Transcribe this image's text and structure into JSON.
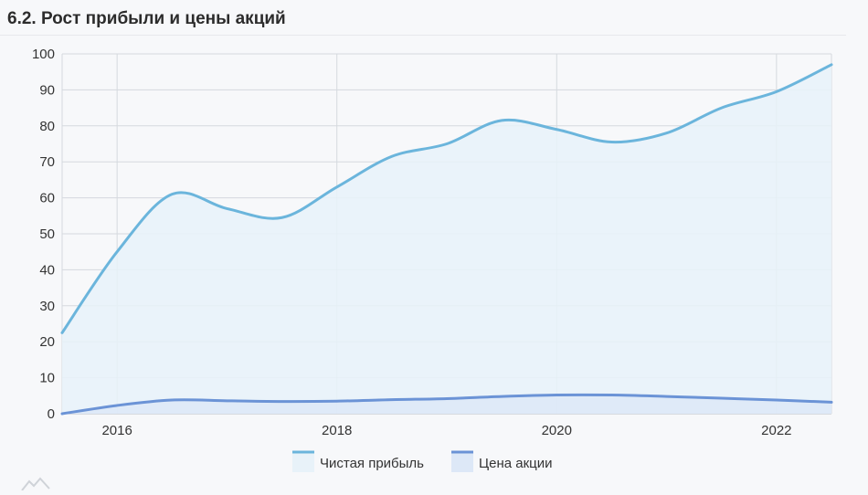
{
  "section": {
    "title": "6.2. Рост прибыли и цены акций"
  },
  "colors": {
    "profit_line": "#6bb5dc",
    "profit_fill": "#e8f2f9",
    "price_line": "#6b93d6",
    "price_fill": "#dde8f7",
    "grid": "#d5d9de",
    "axis": "#333333"
  },
  "chart_data": {
    "type": "area",
    "title": "",
    "xlabel": "",
    "ylabel": "",
    "xlim": [
      2015.5,
      2022.5
    ],
    "ylim": [
      0,
      100
    ],
    "yticks": [
      0,
      10,
      20,
      30,
      40,
      50,
      60,
      70,
      80,
      90,
      100
    ],
    "xticks": [
      2016,
      2018,
      2020,
      2022
    ],
    "grid": true,
    "legend_position": "bottom-center",
    "series": [
      {
        "name": "Чистая прибыль",
        "color": "#6bb5dc",
        "points": [
          [
            2015.5,
            22.5
          ],
          [
            2016.0,
            45
          ],
          [
            2016.5,
            61
          ],
          [
            2017.0,
            57
          ],
          [
            2017.5,
            54.5
          ],
          [
            2018.0,
            63
          ],
          [
            2018.5,
            71.5
          ],
          [
            2019.0,
            75
          ],
          [
            2019.5,
            81.5
          ],
          [
            2020.0,
            79
          ],
          [
            2020.5,
            75.5
          ],
          [
            2021.0,
            78
          ],
          [
            2021.5,
            85
          ],
          [
            2022.0,
            89.5
          ],
          [
            2022.5,
            97
          ]
        ]
      },
      {
        "name": "Цена акции",
        "color": "#6b93d6",
        "points": [
          [
            2015.5,
            0
          ],
          [
            2016.0,
            2.3
          ],
          [
            2016.5,
            3.8
          ],
          [
            2017.0,
            3.6
          ],
          [
            2017.5,
            3.4
          ],
          [
            2018.0,
            3.5
          ],
          [
            2018.5,
            3.9
          ],
          [
            2019.0,
            4.2
          ],
          [
            2019.5,
            4.8
          ],
          [
            2020.0,
            5.2
          ],
          [
            2020.5,
            5.2
          ],
          [
            2021.0,
            4.8
          ],
          [
            2021.5,
            4.3
          ],
          [
            2022.0,
            3.8
          ],
          [
            2022.5,
            3.2
          ]
        ]
      }
    ]
  }
}
